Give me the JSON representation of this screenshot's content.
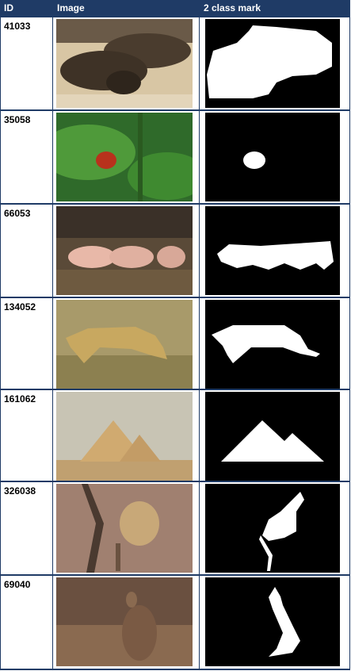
{
  "table": {
    "headers": {
      "id": "ID",
      "image": "Image",
      "mask": "2 class mark"
    },
    "rows": [
      {
        "id": "41033",
        "image": "bison-calves-lying-on-sand"
      },
      {
        "id": "35058",
        "image": "ladybug-on-green-leaf"
      },
      {
        "id": "66053",
        "image": "pigs-walking-by-wall"
      },
      {
        "id": "134052",
        "image": "leopard-walking-in-grass"
      },
      {
        "id": "161062",
        "image": "pyramids-of-giza"
      },
      {
        "id": "326038",
        "image": "wildcat-on-rock"
      },
      {
        "id": "69040",
        "image": "wallaby-in-dry-grass"
      }
    ]
  },
  "colors": {
    "header_bg": "#1f3b66",
    "grid": "#1f3b66",
    "mask_bg": "#000000",
    "mask_fg": "#ffffff"
  }
}
